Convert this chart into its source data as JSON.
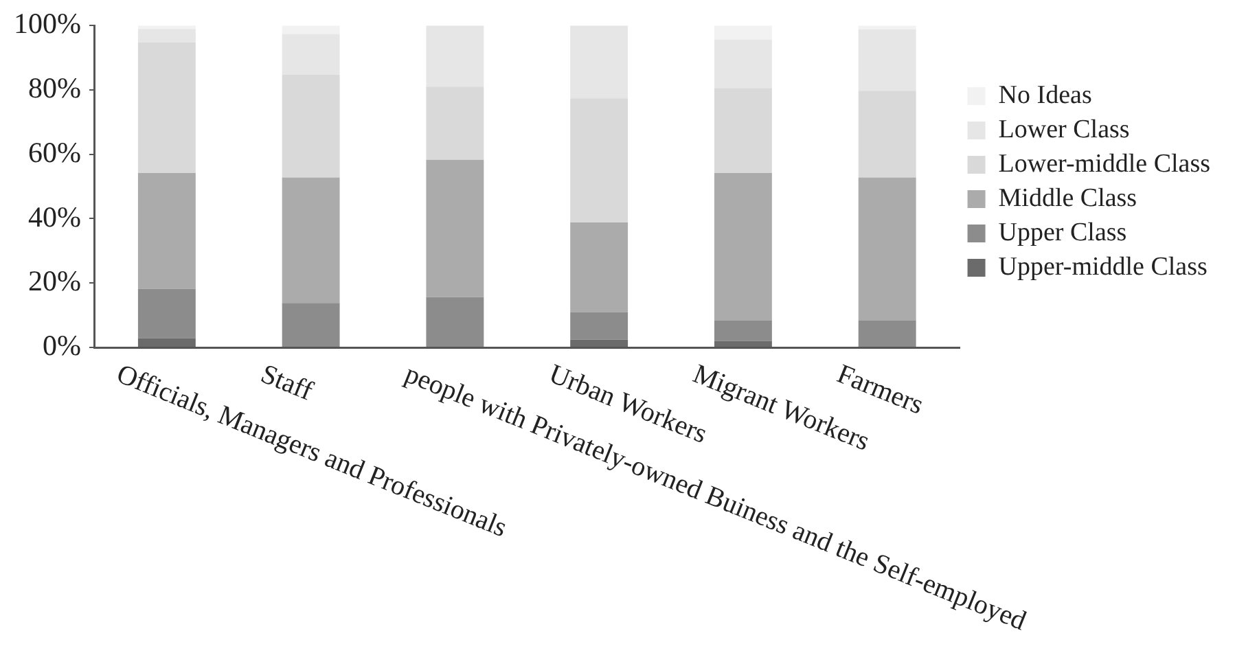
{
  "chart_data": {
    "type": "bar",
    "stacked": true,
    "legend": "right",
    "categories": [
      "Officials, Managers and Professionals",
      "Staff",
      "people with Privately-owned Buiness and the Self-employed",
      "Urban Workers",
      "Migrant Workers",
      "Farmers"
    ],
    "ylim": [
      0,
      100
    ],
    "yticks": [
      {
        "value": 0,
        "label": "0%"
      },
      {
        "value": 20,
        "label": "20%"
      },
      {
        "value": 40,
        "label": "40%"
      },
      {
        "value": 60,
        "label": "60%"
      },
      {
        "value": 80,
        "label": "80%"
      },
      {
        "value": 100,
        "label": "100%"
      }
    ],
    "series": [
      {
        "name": "Upper-middle Class",
        "color": "#6b6b6b",
        "values": [
          2.9,
          0,
          0,
          2.4,
          2,
          0
        ]
      },
      {
        "name": "Upper Class",
        "color": "#8c8c8c",
        "values": [
          15.3,
          13.8,
          15.6,
          8.6,
          6.3,
          8.3
        ]
      },
      {
        "name": "Middle Class",
        "color": "#aaabaa",
        "values": [
          36,
          39,
          42.7,
          27.8,
          45.9,
          44.5
        ]
      },
      {
        "name": "Lower-middle Class",
        "color": "#d8d9d8",
        "values": [
          40.5,
          31.9,
          22.7,
          38.6,
          26.4,
          26.9
        ]
      },
      {
        "name": "Lower Class",
        "color": "#e5e6e5",
        "values": [
          4.2,
          12.7,
          19,
          22.6,
          15,
          19.1
        ]
      },
      {
        "name": "No Ideas",
        "color": "#f2f2f2",
        "values": [
          1.1,
          2.6,
          0,
          0,
          4.4,
          1.2
        ]
      }
    ]
  }
}
